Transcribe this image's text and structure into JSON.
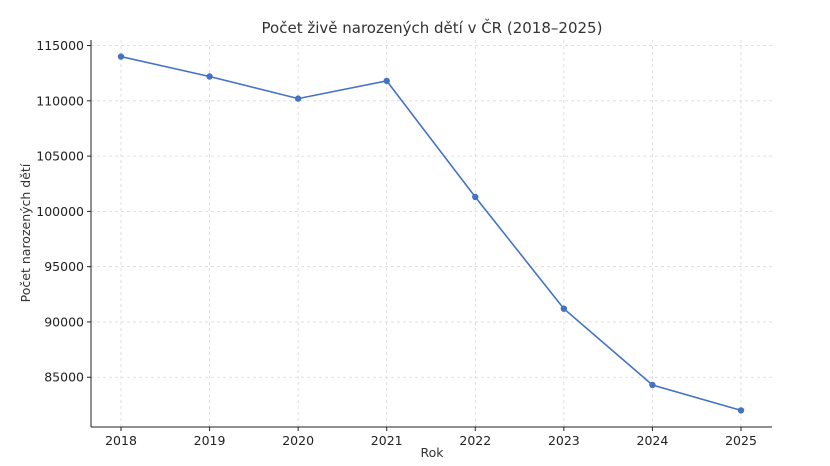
{
  "chart_data": {
    "type": "line",
    "title": "Počet živě narozených dětí v ČR (2018–2025)",
    "xlabel": "Rok",
    "ylabel": "Počet narozených dětí",
    "categories": [
      "2018",
      "2019",
      "2020",
      "2021",
      "2022",
      "2023",
      "2024",
      "2025"
    ],
    "series": [
      {
        "values": [
          114000,
          112200,
          110200,
          111800,
          101300,
          91200,
          84300,
          82000
        ]
      }
    ],
    "ylim": [
      80500,
      115500
    ],
    "yticks": [
      85000,
      90000,
      95000,
      100000,
      105000,
      110000,
      115000
    ],
    "grid": true,
    "color": "#4472c4",
    "marker": "circle"
  }
}
